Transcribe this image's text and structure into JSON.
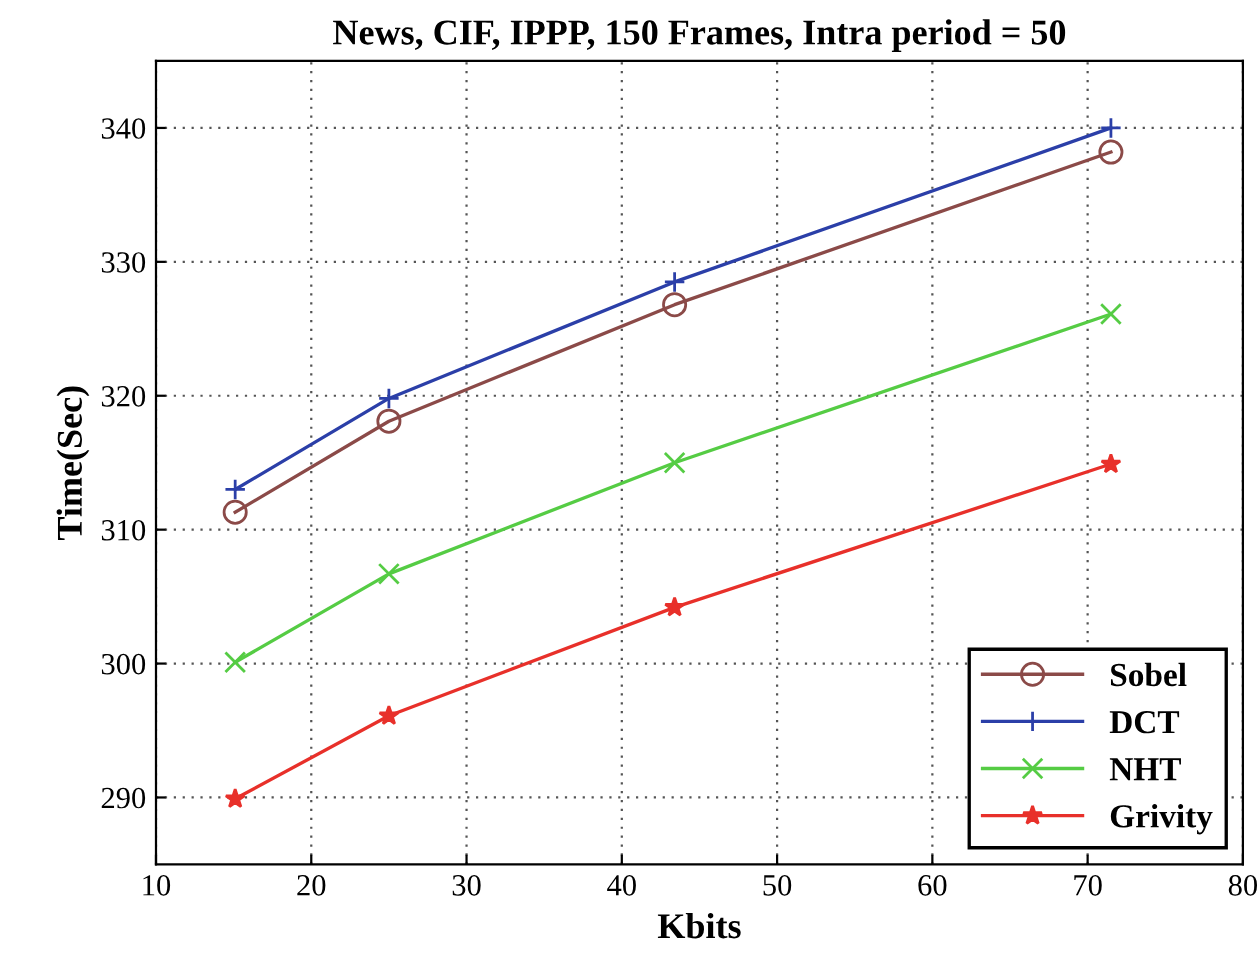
{
  "chart_data": {
    "type": "line",
    "title": "News, CIF, IPPP, 150 Frames, Intra period = 50",
    "xlabel": "Kbits",
    "ylabel": "Time(Sec)",
    "x": [
      15.1,
      25.0,
      43.4,
      71.5
    ],
    "series": [
      {
        "name": "Sobel",
        "color": "#8b4a48",
        "marker": "circle",
        "values": [
          311.3,
          318.1,
          326.8,
          338.2
        ]
      },
      {
        "name": "DCT",
        "color": "#2b3fa8",
        "marker": "plus",
        "values": [
          313.0,
          319.8,
          328.5,
          340.0
        ]
      },
      {
        "name": "NHT",
        "color": "#55cc44",
        "marker": "cross",
        "values": [
          300.1,
          306.7,
          315.0,
          326.1
        ]
      },
      {
        "name": "Grivity",
        "color": "#e8302a",
        "marker": "star",
        "values": [
          289.9,
          296.1,
          304.2,
          314.9
        ]
      }
    ],
    "xlim": [
      10,
      80
    ],
    "xticks": [
      10,
      20,
      30,
      40,
      50,
      60,
      70,
      80
    ],
    "ylim": [
      285,
      345
    ],
    "yticks": [
      290,
      300,
      310,
      320,
      330,
      340
    ],
    "grid": true,
    "legend": "bottom right",
    "line_style": "solid"
  }
}
